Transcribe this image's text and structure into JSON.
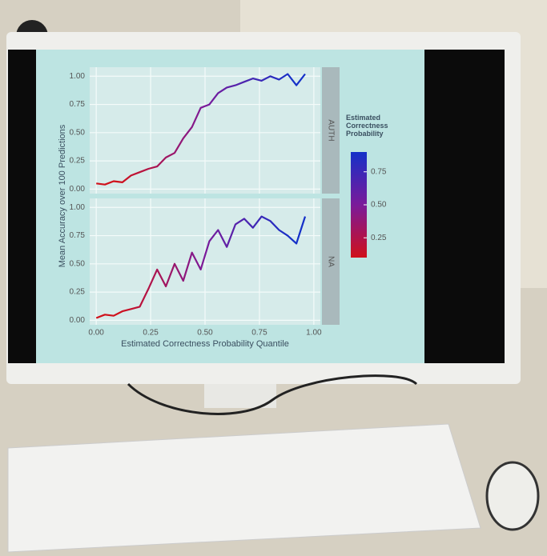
{
  "chart_data": {
    "type": "line",
    "x_label": "Estimated Correctness Probability Quantile",
    "y_label": "Mean Accuracy over 100 Predictions",
    "x": [
      0,
      0.04,
      0.08,
      0.12,
      0.16,
      0.2,
      0.24,
      0.28,
      0.32,
      0.36,
      0.4,
      0.44,
      0.48,
      0.52,
      0.56,
      0.6,
      0.64,
      0.68,
      0.72,
      0.76,
      0.8,
      0.84,
      0.88,
      0.92,
      0.96
    ],
    "series": [
      {
        "name": "AUTH",
        "values": [
          0.05,
          0.04,
          0.07,
          0.06,
          0.12,
          0.15,
          0.18,
          0.2,
          0.28,
          0.32,
          0.45,
          0.55,
          0.72,
          0.75,
          0.85,
          0.9,
          0.92,
          0.95,
          0.98,
          0.96,
          1.0,
          0.97,
          1.02,
          0.92,
          1.02
        ]
      },
      {
        "name": "NA",
        "values": [
          0.02,
          0.05,
          0.04,
          0.08,
          0.1,
          0.12,
          0.28,
          0.45,
          0.3,
          0.5,
          0.35,
          0.6,
          0.45,
          0.7,
          0.8,
          0.65,
          0.85,
          0.9,
          0.82,
          0.92,
          0.88,
          0.8,
          0.75,
          0.68,
          0.92
        ]
      }
    ],
    "xlim": [
      -0.03,
      1.03
    ],
    "ylim": [
      -0.04,
      1.08
    ],
    "xticks": [
      {
        "value": 0,
        "label": "0.00"
      },
      {
        "value": 0.25,
        "label": "0.25"
      },
      {
        "value": 0.5,
        "label": "0.50"
      },
      {
        "value": 0.75,
        "label": "0.75"
      },
      {
        "value": 1,
        "label": "1.00"
      }
    ],
    "yticks": [
      {
        "value": 0,
        "label": "0.00"
      },
      {
        "value": 0.25,
        "label": "0.25"
      },
      {
        "value": 0.5,
        "label": "0.50"
      },
      {
        "value": 0.75,
        "label": "0.75"
      },
      {
        "value": 1,
        "label": "1.00"
      }
    ],
    "grid": true,
    "legend": {
      "title": "Estimated Correctness Probability",
      "low_color": "#d0101a",
      "high_color": "#1530c8",
      "colorlim": [
        0.1,
        0.9
      ],
      "ticks": [
        {
          "value": 0.25,
          "label": "0.25"
        },
        {
          "value": 0.5,
          "label": "0.50"
        },
        {
          "value": 0.75,
          "label": "0.75"
        }
      ]
    }
  }
}
